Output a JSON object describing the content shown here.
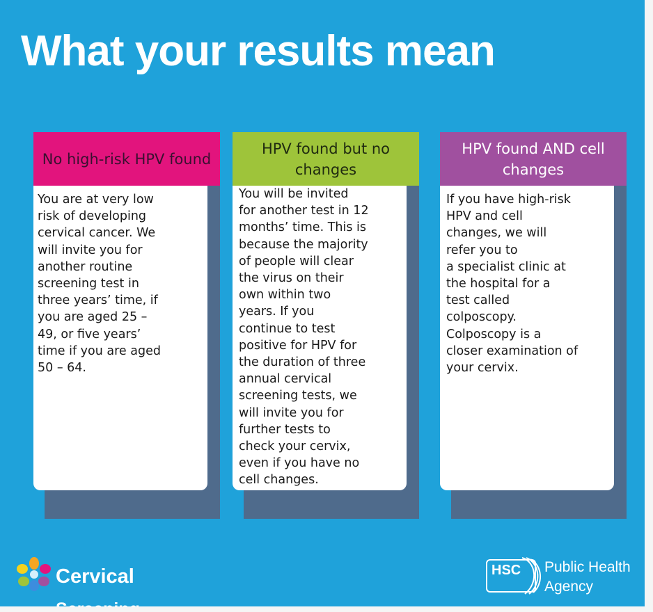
{
  "title": "What your results mean",
  "columns": [
    {
      "header": "No high-risk HPV found",
      "body": "You are at very low\nrisk of developing\ncervical cancer. We\nwill invite you for\nanother routine\nscreening test in\nthree years’ time, if\nyou are aged 25 –\n49, or five years’\ntime if you are aged\n50 – 64.",
      "color": "#e2147d"
    },
    {
      "header": "HPV found but no changes",
      "body": "You will be invited\nfor another test in 12\nmonths’ time. This is\nbecause the majority\nof people will clear\nthe virus on their\nown within two\nyears. If you\ncontinue to test\npositive for HPV for\nthe duration of three\nannual cervical\nscreening tests, we\nwill invite you for\nfurther tests to\ncheck your cervix,\neven if you have no\ncell changes.",
      "color": "#9ec43a"
    },
    {
      "header": "HPV found AND cell changes",
      "body": "If you have high-risk\nHPV and cell\nchanges, we will\nrefer you to\na specialist clinic at\nthe hospital for a\ntest called\ncolposcopy.\nColposcopy is a\ncloser examination of\nyour cervix.",
      "color": "#a0509f"
    }
  ],
  "logos": {
    "cervical_screening": {
      "line1": "Cervical",
      "line2": "Screening"
    },
    "hsc": {
      "mark": "HSC",
      "line1": "Public Health",
      "line2": "Agency"
    }
  },
  "background_color": "#1fa2da",
  "shadow_color": "#4f6b8c"
}
